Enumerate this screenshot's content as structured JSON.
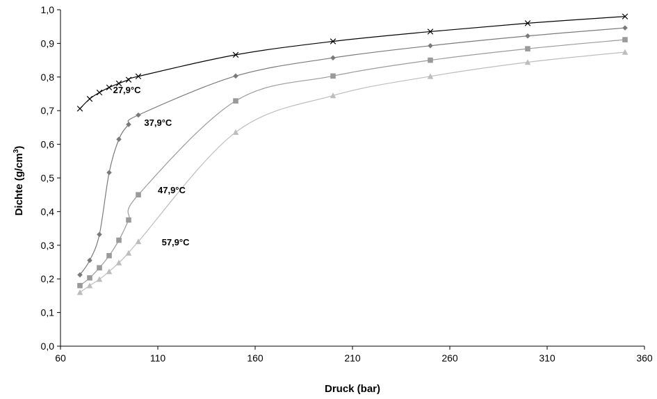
{
  "chart_data": {
    "type": "line",
    "title": "",
    "xlabel": "Druck (bar)",
    "ylabel": "Dichte (g/cm",
    "ylabel_sup": "3",
    "ylabel_suffix": ")",
    "xlim": [
      60,
      360
    ],
    "ylim": [
      0,
      1
    ],
    "x_ticks": [
      "60",
      "110",
      "160",
      "210",
      "260",
      "310",
      "360"
    ],
    "y_ticks": [
      "0,0",
      "0,1",
      "0,2",
      "0,3",
      "0,4",
      "0,5",
      "0,6",
      "0,7",
      "0,8",
      "0,9",
      "1,0"
    ],
    "grid": false,
    "legend": "none",
    "series": [
      {
        "name": "27,9°C",
        "marker": "x",
        "color": "#000000",
        "x": [
          70,
          75,
          80,
          85,
          90,
          95,
          100,
          150,
          200,
          250,
          300,
          350
        ],
        "y": [
          0.706,
          0.735,
          0.754,
          0.769,
          0.781,
          0.792,
          0.802,
          0.866,
          0.906,
          0.935,
          0.96,
          0.98
        ]
      },
      {
        "name": "37,9°C",
        "marker": "diamond",
        "color": "#7a7a7a",
        "x": [
          70,
          75,
          80,
          85,
          90,
          95,
          100,
          150,
          200,
          250,
          300,
          350
        ],
        "y": [
          0.212,
          0.255,
          0.332,
          0.516,
          0.615,
          0.659,
          0.687,
          0.803,
          0.857,
          0.893,
          0.922,
          0.946
        ]
      },
      {
        "name": "47,9°C",
        "marker": "square",
        "color": "#9a9a9a",
        "x": [
          70,
          75,
          80,
          85,
          90,
          95,
          100,
          150,
          200,
          250,
          300,
          350
        ],
        "y": [
          0.18,
          0.203,
          0.233,
          0.269,
          0.315,
          0.375,
          0.45,
          0.729,
          0.803,
          0.85,
          0.884,
          0.911
        ]
      },
      {
        "name": "57,9°C",
        "marker": "triangle",
        "color": "#bdbdbd",
        "x": [
          70,
          75,
          80,
          85,
          90,
          95,
          100,
          150,
          200,
          250,
          300,
          350
        ],
        "y": [
          0.16,
          0.18,
          0.199,
          0.222,
          0.248,
          0.277,
          0.311,
          0.636,
          0.745,
          0.802,
          0.844,
          0.874
        ]
      }
    ],
    "annotations": [
      {
        "text": "27,9°C",
        "x": 87,
        "y": 0.752
      },
      {
        "text": "37,9°C",
        "x": 103,
        "y": 0.655
      },
      {
        "text": "47,9°C",
        "x": 110,
        "y": 0.455
      },
      {
        "text": "57,9°C",
        "x": 112,
        "y": 0.3
      }
    ]
  }
}
